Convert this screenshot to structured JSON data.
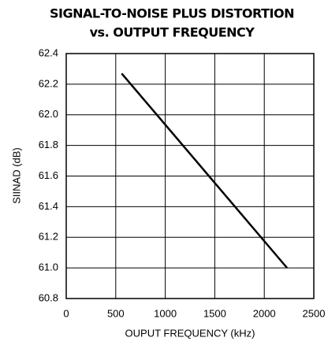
{
  "chart_data": {
    "type": "line",
    "title": [
      "SIGNAL-TO-NOISE PLUS DISTORTION",
      "vs. OUTPUT FREQUENCY"
    ],
    "x_label": "OUPUT FREQUENCY (kHz)",
    "y_label": "SIINAD (dB)",
    "x": [
      560,
      2230
    ],
    "series": [
      {
        "color": "#000000",
        "values": [
          62.27,
          61.0
        ]
      }
    ],
    "xlim": [
      0,
      2500
    ],
    "xticks": [
      0,
      500,
      1000,
      1500,
      2000,
      2500
    ],
    "ylim": [
      60.8,
      62.4
    ],
    "yticks": [
      60.8,
      {
        "value": 61.0,
        "label": "61.0"
      },
      61.2,
      61.4,
      61.6,
      61.8,
      {
        "value": 62.0,
        "label": "62.0"
      },
      62.2,
      62.4
    ],
    "grid": true
  }
}
